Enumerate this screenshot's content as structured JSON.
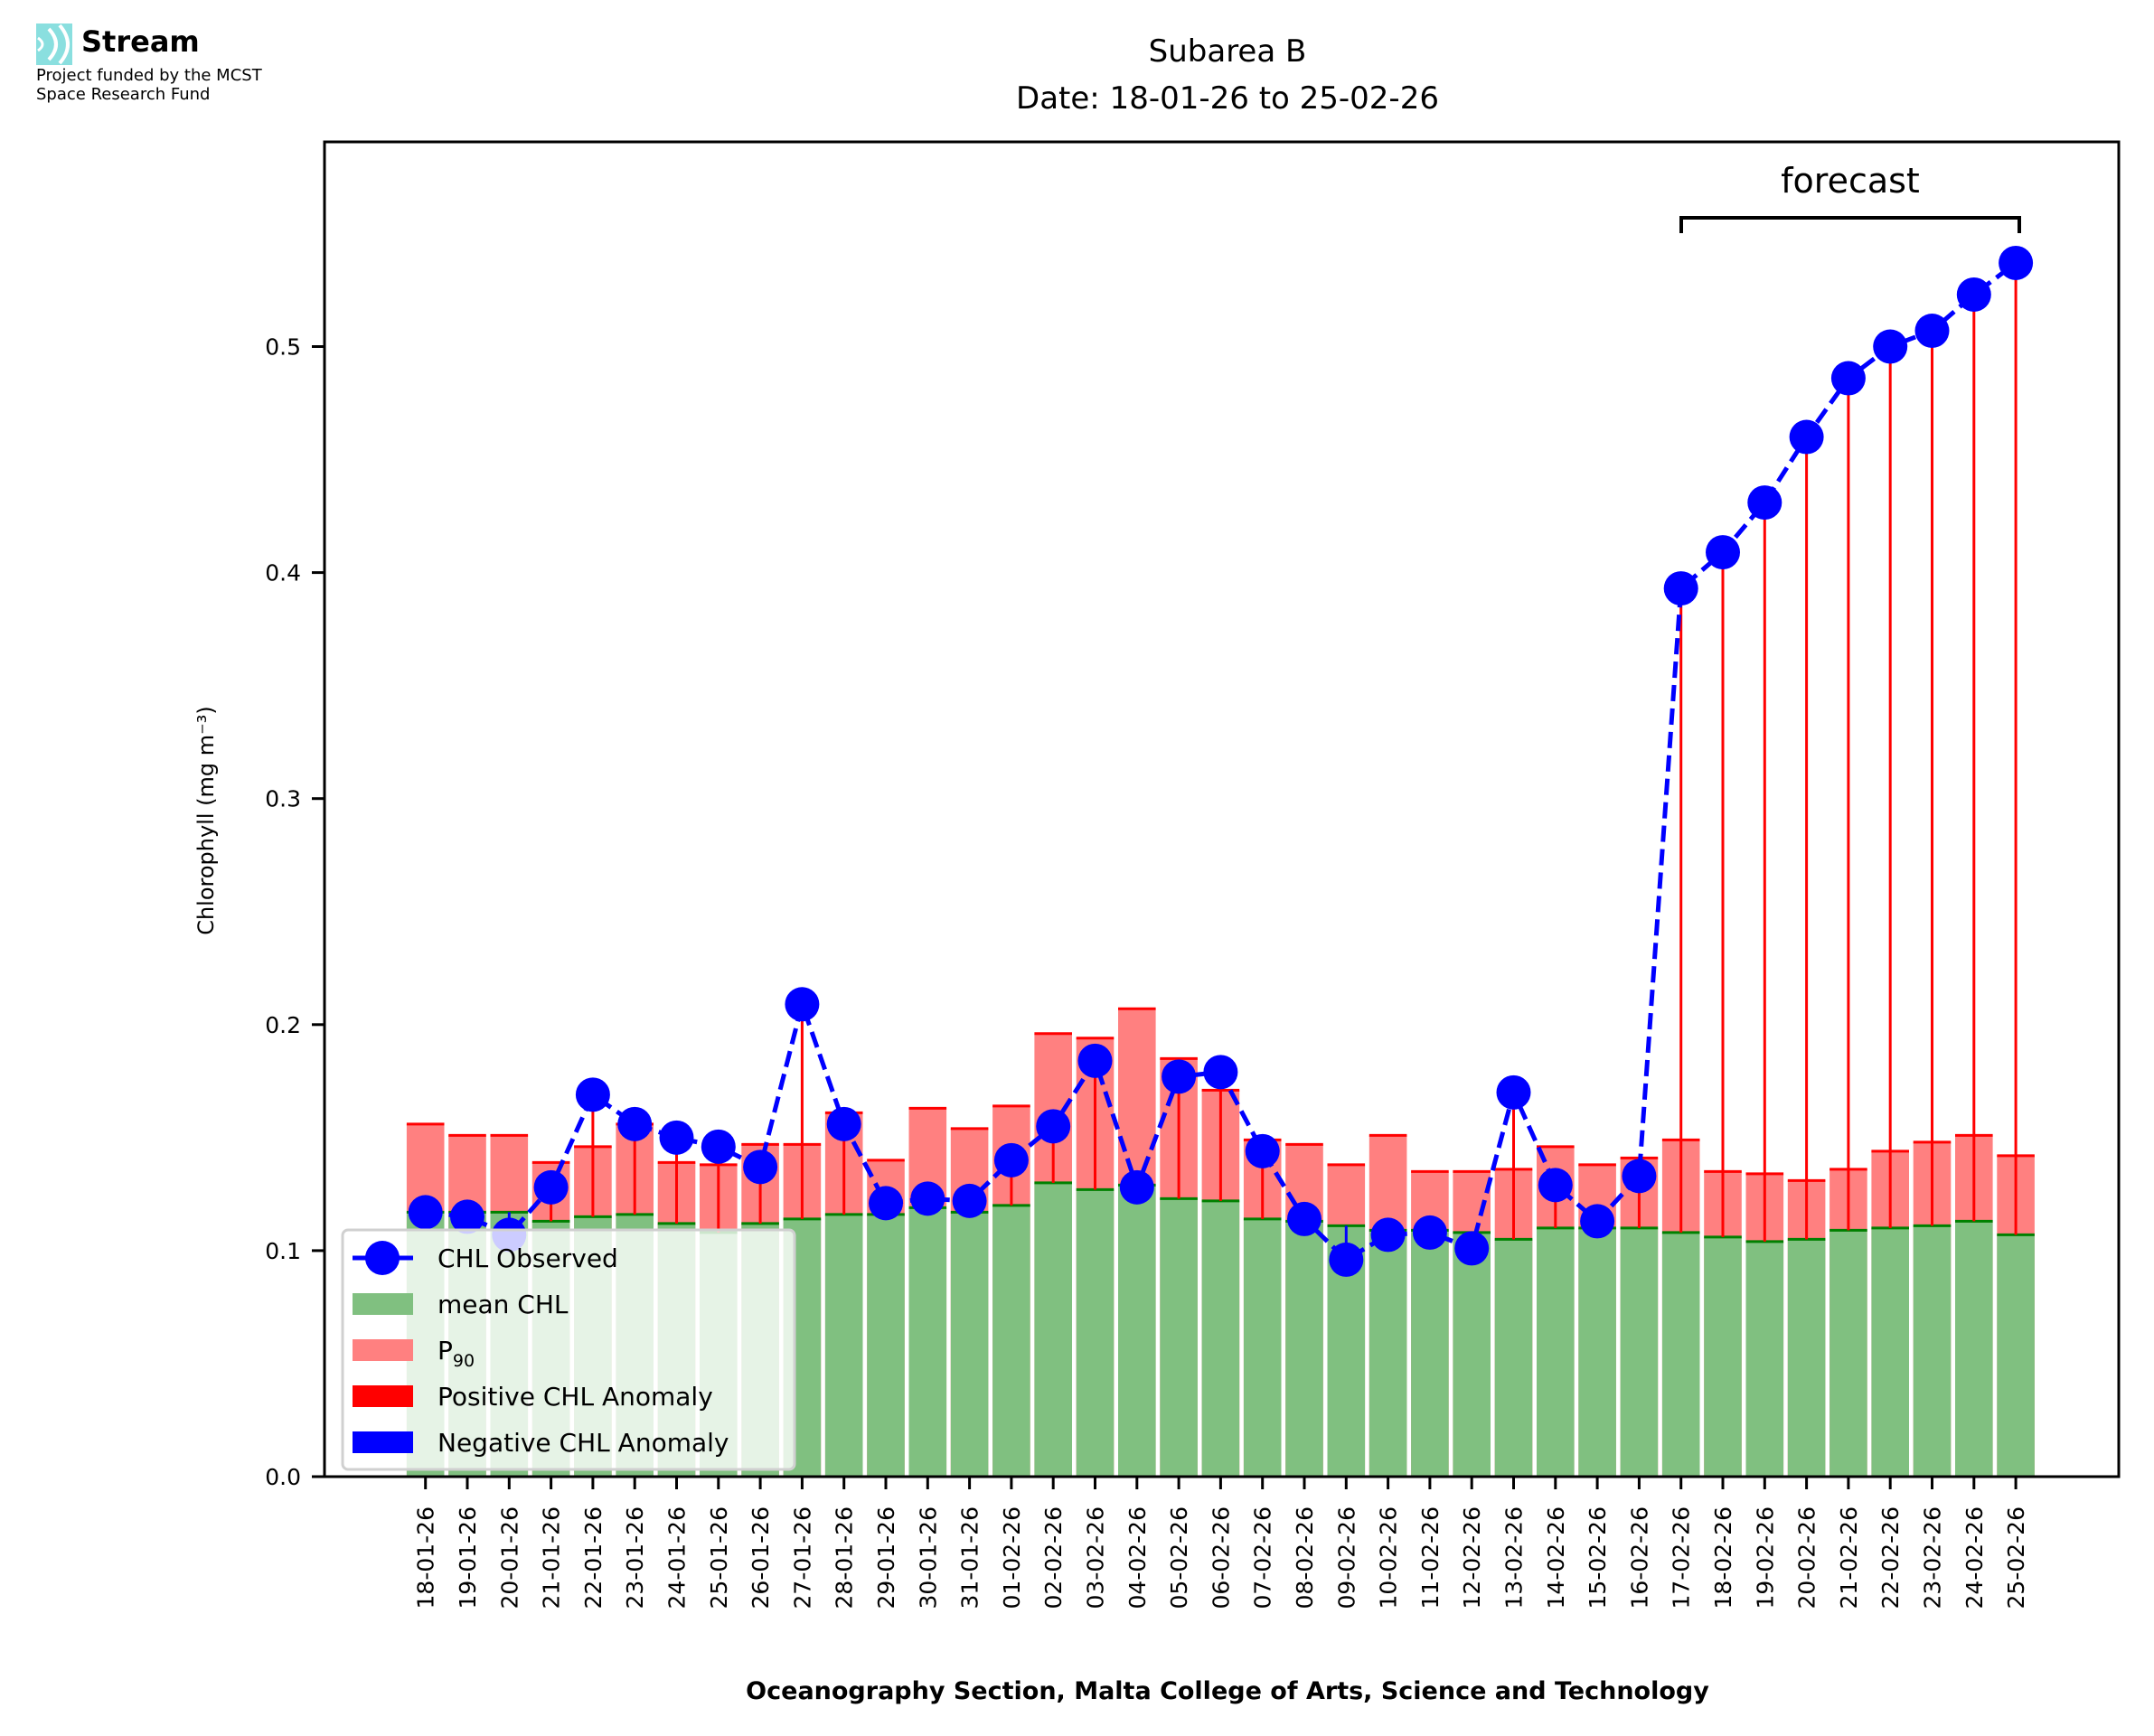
{
  "branding": {
    "logo_icon": "stream-waves-icon",
    "name": "Stream",
    "subtitle_line1": "Project funded by the MCST",
    "subtitle_line2": "Space Research Fund",
    "accent_color": "#8adfdf"
  },
  "chart_data": {
    "type": "bar",
    "title": "Subarea B",
    "subtitle": "Date: 18-01-26 to 25-02-26",
    "xlabel": "Oceanography Section, Malta College of Arts, Science and Technology",
    "ylabel": "Chlorophyll (mg m⁻³)",
    "ylim": [
      0.0,
      0.59
    ],
    "yticks": [
      0.0,
      0.1,
      0.2,
      0.3,
      0.4,
      0.5
    ],
    "ytick_labels": [
      "0.0",
      "0.1",
      "0.2",
      "0.3",
      "0.4",
      "0.5"
    ],
    "grid": false,
    "legend_position": "lower-left",
    "annotation": {
      "text": "forecast",
      "from": "17-02-26",
      "to": "25-02-26"
    },
    "categories": [
      "18-01-26",
      "19-01-26",
      "20-01-26",
      "21-01-26",
      "22-01-26",
      "23-01-26",
      "24-01-26",
      "25-01-26",
      "26-01-26",
      "27-01-26",
      "28-01-26",
      "29-01-26",
      "30-01-26",
      "31-01-26",
      "01-02-26",
      "02-02-26",
      "03-02-26",
      "04-02-26",
      "05-02-26",
      "06-02-26",
      "07-02-26",
      "08-02-26",
      "09-02-26",
      "10-02-26",
      "11-02-26",
      "12-02-26",
      "13-02-26",
      "14-02-26",
      "15-02-26",
      "16-02-26",
      "17-02-26",
      "18-02-26",
      "19-02-26",
      "20-02-26",
      "21-02-26",
      "22-02-26",
      "23-02-26",
      "24-02-26",
      "25-02-26"
    ],
    "series": [
      {
        "name": "CHL Observed",
        "kind": "line-dashed-markers",
        "color": "#0000ff",
        "values": [
          0.117,
          0.115,
          0.107,
          0.128,
          0.169,
          0.156,
          0.15,
          0.146,
          0.137,
          0.209,
          0.156,
          0.121,
          0.123,
          0.122,
          0.14,
          0.155,
          0.184,
          0.128,
          0.177,
          0.179,
          0.144,
          0.114,
          0.096,
          0.107,
          0.108,
          0.101,
          0.17,
          0.129,
          0.113,
          0.133,
          0.393,
          0.409,
          0.431,
          0.46,
          0.486,
          0.5,
          0.507,
          0.523,
          0.537
        ]
      },
      {
        "name": "mean CHL",
        "kind": "bar",
        "color": "#80c080",
        "edge_color": "#008000",
        "values": [
          0.117,
          0.117,
          0.117,
          0.113,
          0.115,
          0.116,
          0.112,
          0.108,
          0.112,
          0.114,
          0.116,
          0.116,
          0.119,
          0.117,
          0.12,
          0.13,
          0.127,
          0.129,
          0.123,
          0.122,
          0.114,
          0.113,
          0.111,
          0.109,
          0.109,
          0.108,
          0.105,
          0.11,
          0.11,
          0.11,
          0.108,
          0.106,
          0.104,
          0.105,
          0.109,
          0.11,
          0.111,
          0.113,
          0.107
        ]
      },
      {
        "name": "P90",
        "kind": "bar",
        "color": "#ff8080",
        "edge_color": "#ff0000",
        "values": [
          0.156,
          0.151,
          0.151,
          0.139,
          0.146,
          0.156,
          0.139,
          0.138,
          0.147,
          0.147,
          0.161,
          0.14,
          0.163,
          0.154,
          0.164,
          0.196,
          0.194,
          0.207,
          0.185,
          0.171,
          0.149,
          0.147,
          0.138,
          0.151,
          0.135,
          0.135,
          0.136,
          0.146,
          0.138,
          0.141,
          0.149,
          0.135,
          0.134,
          0.131,
          0.136,
          0.144,
          0.148,
          0.151,
          0.142
        ]
      }
    ],
    "legend": [
      {
        "label": "CHL Observed",
        "swatch": "line-marker",
        "color": "#0000ff"
      },
      {
        "label": "mean CHL",
        "swatch": "patch",
        "color": "#80c080"
      },
      {
        "label": "P",
        "label_sub": "90",
        "swatch": "patch",
        "color": "#ff8080"
      },
      {
        "label": "Positive CHL Anomaly",
        "swatch": "patch",
        "color": "#ff0000"
      },
      {
        "label": "Negative CHL Anomaly",
        "swatch": "patch",
        "color": "#0000ff"
      }
    ]
  }
}
